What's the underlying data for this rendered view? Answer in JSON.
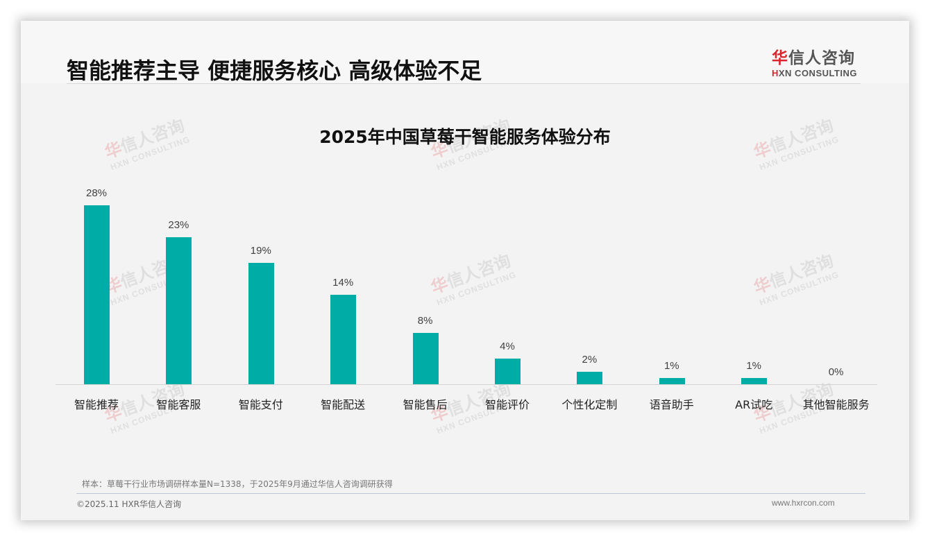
{
  "slide": {
    "headline": "智能推荐主导 便捷服务核心 高级体验不足",
    "logo": {
      "cn_first": "华",
      "cn_rest": "信人咨询",
      "en_first": "H",
      "en_rest": "XN CONSULTING"
    },
    "watermark": {
      "cn_first": "华",
      "cn_rest": "信人咨询",
      "en": "HXN CONSULTING"
    },
    "note": "样本：草莓干行业市场调研样本量N=1338，于2025年9月通过华信人咨询调研获得",
    "copyright": "©2025.11 HXR华信人咨询",
    "website": "www.hxrcon.com",
    "colors": {
      "bar": "#00ada6",
      "brand_red": "#d9262c"
    }
  },
  "chart_data": {
    "type": "bar",
    "title": "2025年中国草莓干智能服务体验分布",
    "xlabel": "",
    "ylabel": "",
    "categories": [
      "智能推荐",
      "智能客服",
      "智能支付",
      "智能配送",
      "智能售后",
      "智能评价",
      "个性化定制",
      "语音助手",
      "AR试吃",
      "其他智能服务"
    ],
    "values": [
      28,
      23,
      19,
      14,
      8,
      4,
      2,
      1,
      1,
      0
    ],
    "value_labels": [
      "28%",
      "23%",
      "19%",
      "14%",
      "8%",
      "4%",
      "2%",
      "1%",
      "1%",
      "0%"
    ],
    "unit": "%",
    "ylim": [
      0,
      30
    ],
    "grid": false,
    "legend": "none"
  }
}
